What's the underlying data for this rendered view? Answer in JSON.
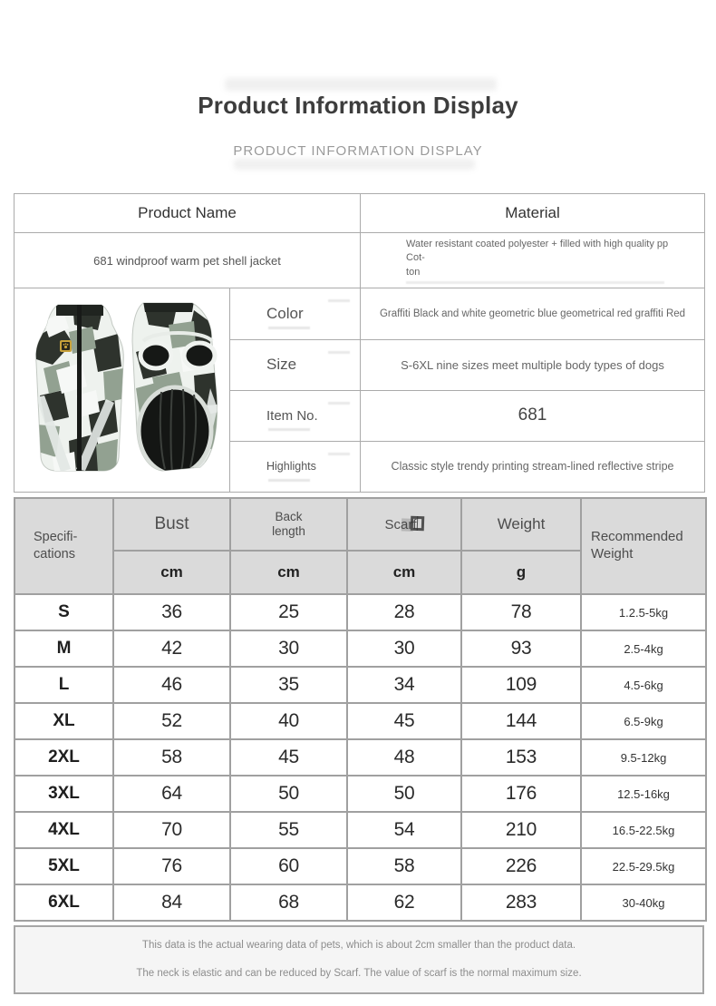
{
  "page": {
    "title": "Product Information Display",
    "subtitle": "PRODUCT INFORMATION DISPLAY"
  },
  "info_table": {
    "product_name_header": "Product Name",
    "material_header": "Material",
    "product_name_value": "681 windproof warm pet shell jacket",
    "material_line1": "Water resistant coated polyester + filled with high quality pp Cot-",
    "material_line2": "ton",
    "rows": [
      {
        "label": "Color",
        "value": "Graffiti Black and white geometric blue geometrical red graffiti Red"
      },
      {
        "label": "Size",
        "value": "S-6XL nine sizes meet multiple body types of dogs"
      },
      {
        "label": "Item No.",
        "value": "681"
      },
      {
        "label": "Highlights",
        "value": "Classic style trendy printing stream-lined reflective stripe"
      }
    ],
    "photo": {
      "description": "camouflage pet shell jacket, front view with zipper and gold paw patch, back view with leg holes and black lining",
      "camo_dark": "#2e332d",
      "camo_sage": "#92a191",
      "camo_light": "#f6f8f6",
      "logo_gold": "#c9a23a"
    }
  },
  "size_chart": {
    "spec_header": {
      "line1": "Specifi-",
      "line2": "cations"
    },
    "columns": [
      {
        "label": "Bust",
        "label2": "",
        "unit": "cm"
      },
      {
        "label": "Back",
        "label2": "length",
        "unit": "cm"
      },
      {
        "label": "Scarf",
        "label2": "",
        "unit": "cm"
      },
      {
        "label": "Weight",
        "label2": "",
        "unit": "g"
      }
    ],
    "recommended_header": {
      "line1": "Recommended",
      "line2": "Weight"
    },
    "rows": [
      {
        "size": "S",
        "bust": "36",
        "back_length": "25",
        "scarf": "28",
        "weight": "78",
        "recommended": "1.2.5-5kg"
      },
      {
        "size": "M",
        "bust": "42",
        "back_length": "30",
        "scarf": "30",
        "weight": "93",
        "recommended": "2.5-4kg"
      },
      {
        "size": "L",
        "bust": "46",
        "back_length": "35",
        "scarf": "34",
        "weight": "109",
        "recommended": "4.5-6kg"
      },
      {
        "size": "XL",
        "bust": "52",
        "back_length": "40",
        "scarf": "45",
        "weight": "144",
        "recommended": "6.5-9kg"
      },
      {
        "size": "2XL",
        "bust": "58",
        "back_length": "45",
        "scarf": "48",
        "weight": "153",
        "recommended": "9.5-12kg"
      },
      {
        "size": "3XL",
        "bust": "64",
        "back_length": "50",
        "scarf": "50",
        "weight": "176",
        "recommended": "12.5-16kg"
      },
      {
        "size": "4XL",
        "bust": "70",
        "back_length": "55",
        "scarf": "54",
        "weight": "210",
        "recommended": "16.5-22.5kg"
      },
      {
        "size": "5XL",
        "bust": "76",
        "back_length": "60",
        "scarf": "58",
        "weight": "226",
        "recommended": "22.5-29.5kg"
      },
      {
        "size": "6XL",
        "bust": "84",
        "back_length": "68",
        "scarf": "62",
        "weight": "283",
        "recommended": "30-40kg"
      }
    ]
  },
  "footer": {
    "notes": [
      "This data is the actual wearing data of pets, which is about 2cm smaller than the product data.",
      "The neck is elastic and can be reduced by Scarf. The value of scarf is the normal maximum size."
    ]
  }
}
